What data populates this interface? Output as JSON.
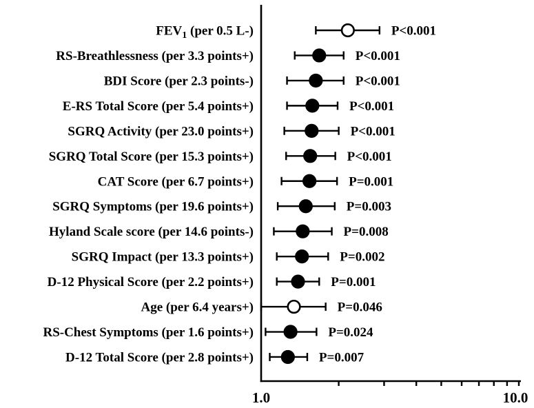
{
  "chart_data": {
    "type": "scatter",
    "variant": "forest-plot",
    "title": "",
    "xscale": "log",
    "xlim": [
      1.0,
      10.0
    ],
    "x_tick_labels": [
      "1.0",
      "10.0"
    ],
    "x_ticks": [
      2,
      3,
      4,
      5,
      6,
      7,
      8,
      9,
      10
    ],
    "grid": false,
    "legend": "none",
    "colors": {
      "line": "#000000",
      "marker_filled": "#000000",
      "marker_open_fill": "#ffffff",
      "background": "#ffffff"
    },
    "rows": [
      {
        "label": [
          "FEV",
          {
            "sub": "1"
          },
          " (per 0.5 L-)"
        ],
        "estimate": 2.17,
        "ci_low": 1.63,
        "ci_high": 2.88,
        "p": "P<0.001",
        "marker": "open"
      },
      {
        "label": "RS-Breathlessness (per 3.3 points+)",
        "estimate": 1.68,
        "ci_low": 1.35,
        "ci_high": 2.09,
        "p": "P<0.001",
        "marker": "filled"
      },
      {
        "label": "BDI Score (per 2.3 points-)",
        "estimate": 1.63,
        "ci_low": 1.26,
        "ci_high": 2.09,
        "p": "P<0.001",
        "marker": "filled"
      },
      {
        "label": "E-RS Total Score (per 5.4 points+)",
        "estimate": 1.58,
        "ci_low": 1.26,
        "ci_high": 1.98,
        "p": "P<0.001",
        "marker": "filled"
      },
      {
        "label": "SGRQ Activity (per 23.0 points+)",
        "estimate": 1.57,
        "ci_low": 1.23,
        "ci_high": 2.0,
        "p": "P<0.001",
        "marker": "filled"
      },
      {
        "label": "SGRQ Total Score (per 15.3 points+)",
        "estimate": 1.55,
        "ci_low": 1.25,
        "ci_high": 1.94,
        "p": "P<0.001",
        "marker": "filled"
      },
      {
        "label": "CAT Score (per 6.7 points+)",
        "estimate": 1.54,
        "ci_low": 1.2,
        "ci_high": 1.97,
        "p": "P=0.001",
        "marker": "filled"
      },
      {
        "label": "SGRQ Symptoms (per 19.6 points+)",
        "estimate": 1.49,
        "ci_low": 1.16,
        "ci_high": 1.93,
        "p": "P=0.003",
        "marker": "filled"
      },
      {
        "label": "Hyland Scale score (per 14.6 points-)",
        "estimate": 1.45,
        "ci_low": 1.12,
        "ci_high": 1.88,
        "p": "P=0.008",
        "marker": "filled"
      },
      {
        "label": "SGRQ Impact (per 13.3 points+)",
        "estimate": 1.44,
        "ci_low": 1.15,
        "ci_high": 1.82,
        "p": "P=0.002",
        "marker": "filled"
      },
      {
        "label": "D-12 Physical Score (per 2.2 points+)",
        "estimate": 1.39,
        "ci_low": 1.15,
        "ci_high": 1.68,
        "p": "P=0.001",
        "marker": "filled"
      },
      {
        "label": "Age (per 6.4 years+)",
        "estimate": 1.34,
        "ci_low": 1.0,
        "ci_high": 1.78,
        "p": "P=0.046",
        "marker": "open"
      },
      {
        "label": "RS-Chest Symptoms (per 1.6 points+)",
        "estimate": 1.3,
        "ci_low": 1.04,
        "ci_high": 1.64,
        "p": "P=0.024",
        "marker": "filled"
      },
      {
        "label": "D-12 Total Score (per 2.8 points+)",
        "estimate": 1.27,
        "ci_low": 1.08,
        "ci_high": 1.51,
        "p": "P=0.007",
        "marker": "filled"
      }
    ]
  }
}
